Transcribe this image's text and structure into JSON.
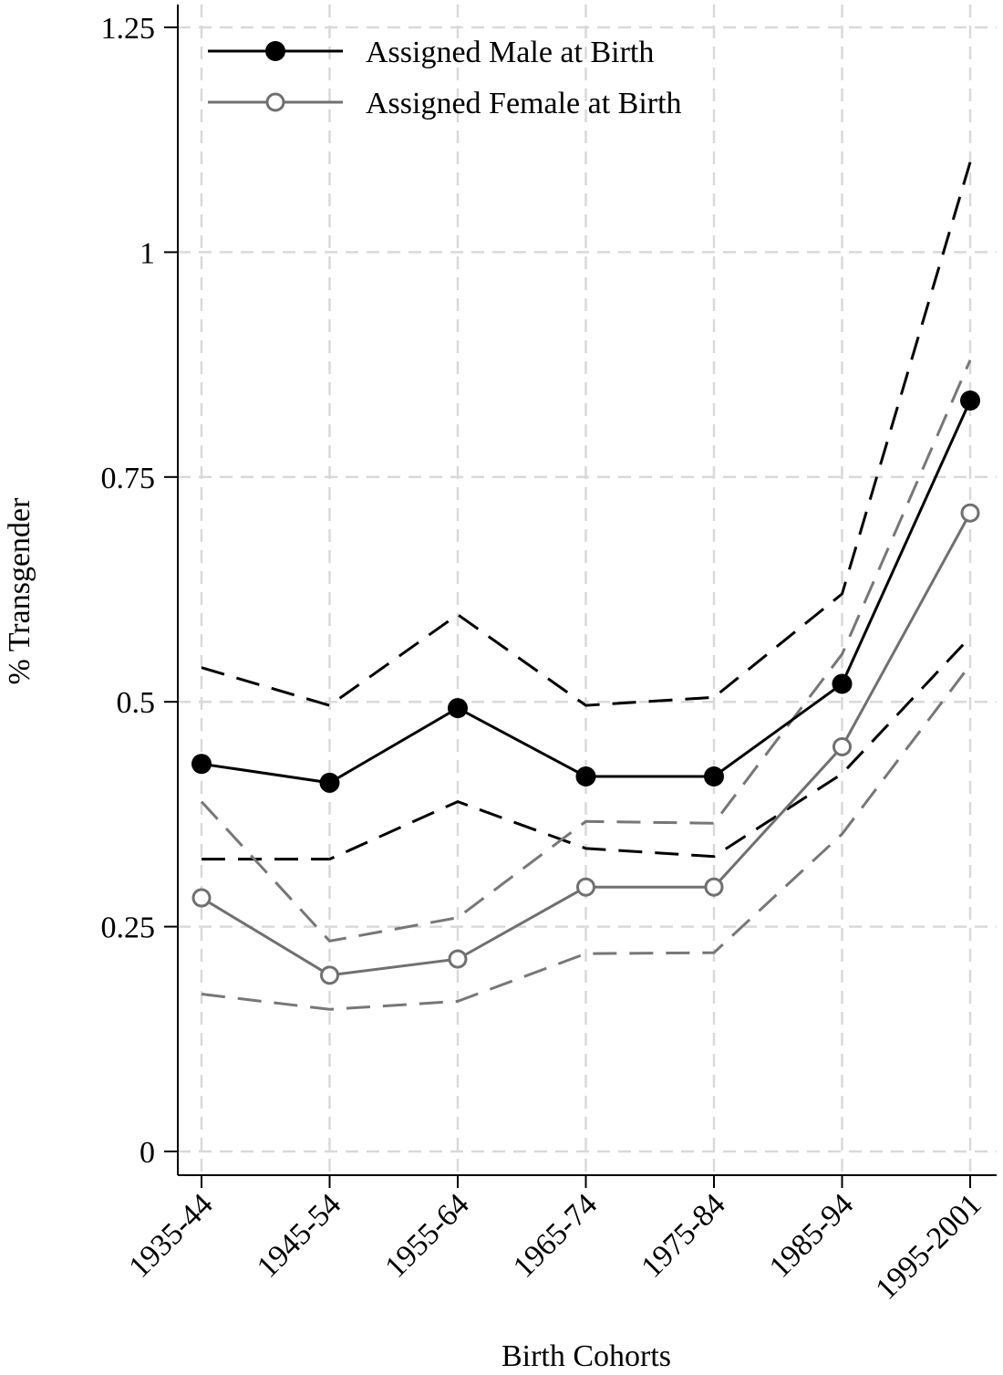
{
  "chart_data": {
    "type": "line",
    "title": "",
    "xlabel": "Birth Cohorts",
    "ylabel": "% Transgender",
    "categories": [
      "1935-44",
      "1945-54",
      "1955-64",
      "1965-74",
      "1975-84",
      "1985-94",
      "1995-2001"
    ],
    "ylim": [
      0,
      1.25
    ],
    "yticks": [
      0,
      0.25,
      0.5,
      0.75,
      1,
      1.25
    ],
    "ytick_labels": [
      "0",
      "0.25",
      "0.5",
      "0.75",
      "1",
      "1.25"
    ],
    "grid": true,
    "legend_position": "top-left",
    "series": [
      {
        "name": "Assigned Male at Birth",
        "color": "#000000",
        "marker": "filled-circle",
        "values": [
          0.431,
          0.41,
          0.493,
          0.417,
          0.417,
          0.52,
          0.835
        ],
        "ci_lower": [
          0.325,
          0.325,
          0.389,
          0.337,
          0.328,
          0.42,
          0.572
        ],
        "ci_upper": [
          0.538,
          0.496,
          0.597,
          0.496,
          0.505,
          0.62,
          1.1
        ]
      },
      {
        "name": "Assigned Female at Birth",
        "color": "#707070",
        "marker": "hollow-circle",
        "values": [
          0.282,
          0.196,
          0.214,
          0.294,
          0.294,
          0.45,
          0.71
        ],
        "ci_lower": [
          0.175,
          0.158,
          0.167,
          0.22,
          0.221,
          0.353,
          0.541
        ],
        "ci_upper": [
          0.389,
          0.234,
          0.26,
          0.367,
          0.365,
          0.553,
          0.88
        ]
      }
    ]
  }
}
